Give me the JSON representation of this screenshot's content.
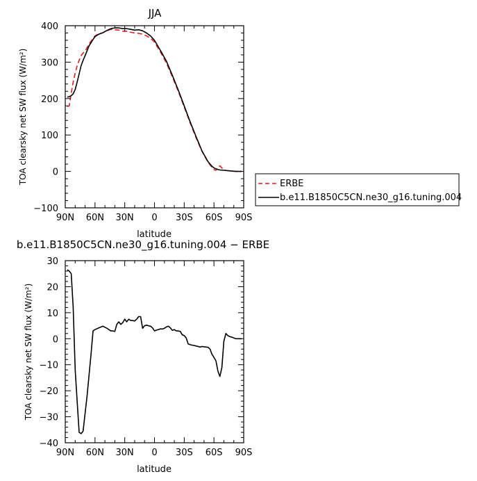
{
  "chart_data": [
    {
      "type": "line",
      "title": "JJA",
      "xlabel": "latitude",
      "ylabel": "TOA clearsky net SW flux (W/m²)",
      "xlim": [
        90,
        -90
      ],
      "ylim": [
        -100,
        400
      ],
      "xticks": [
        90,
        60,
        30,
        0,
        -30,
        -60,
        -90
      ],
      "xtick_labels": [
        "90N",
        "60N",
        "30N",
        "0",
        "30S",
        "60S",
        "90S"
      ],
      "yticks": [
        -100,
        0,
        100,
        200,
        300,
        400
      ],
      "ytick_labels": [
        "−100",
        "0",
        "100",
        "200",
        "300",
        "400"
      ],
      "legend": {
        "placement": "right",
        "entries": [
          {
            "label": "ERBE",
            "color": "#e41a1c",
            "dash": "dashed"
          },
          {
            "label": "b.e11.B1850C5CN.ne30_g16.tuning.004",
            "color": "#000000",
            "dash": "solid"
          }
        ]
      },
      "series": [
        {
          "name": "ERBE",
          "color": "#e41a1c",
          "dash": "dashed",
          "x": [
            88,
            86,
            84,
            82,
            80,
            78,
            76,
            74,
            72,
            70,
            66,
            62,
            60,
            56,
            52,
            48,
            44,
            40,
            36,
            32,
            28,
            24,
            20,
            16,
            12,
            8,
            4,
            0,
            -6,
            -12,
            -18,
            -24,
            -30,
            -36,
            -42,
            -48,
            -54,
            -58,
            -60,
            -62,
            -64,
            -66,
            -70,
            -74,
            -78,
            -82,
            -86,
            -88
          ],
          "y": [
            178,
            180,
            215,
            245,
            270,
            290,
            305,
            318,
            325,
            330,
            350,
            365,
            372,
            378,
            381,
            386,
            390,
            389,
            388,
            385,
            385,
            382,
            380,
            379,
            377,
            372,
            366,
            355,
            328,
            298,
            260,
            220,
            177,
            133,
            92,
            55,
            25,
            11,
            5,
            3,
            12,
            15,
            4,
            2,
            1,
            0,
            0,
            0
          ]
        },
        {
          "name": "b.e11.B1850C5CN.ne30_g16.tuning.004",
          "color": "#000000",
          "dash": "solid",
          "x": [
            88,
            86,
            84,
            82,
            80,
            78,
            76,
            74,
            72,
            70,
            66,
            62,
            60,
            56,
            52,
            48,
            44,
            40,
            36,
            32,
            28,
            24,
            20,
            16,
            12,
            8,
            4,
            0,
            -6,
            -12,
            -18,
            -24,
            -30,
            -36,
            -42,
            -48,
            -54,
            -58,
            -60,
            -62,
            -64,
            -66,
            -70,
            -74,
            -78,
            -82,
            -86,
            -88
          ],
          "y": [
            204,
            205,
            208,
            213,
            225,
            245,
            268,
            290,
            305,
            318,
            345,
            362,
            370,
            377,
            381,
            387,
            392,
            394,
            394,
            392,
            392,
            390,
            388,
            389,
            386,
            380,
            372,
            360,
            332,
            303,
            264,
            223,
            180,
            136,
            95,
            56,
            27,
            14,
            10,
            7,
            5,
            4,
            3,
            2,
            1,
            0,
            0,
            0
          ]
        }
      ]
    },
    {
      "type": "line",
      "title": "b.e11.B1850C5CN.ne30_g16.tuning.004 − ERBE",
      "xlabel": "latitude",
      "ylabel": "TOA clearsky net SW flux (W/m²)",
      "xlim": [
        90,
        -90
      ],
      "ylim": [
        -40,
        30
      ],
      "xticks": [
        90,
        60,
        30,
        0,
        -30,
        -60,
        -90
      ],
      "xtick_labels": [
        "90N",
        "60N",
        "30N",
        "0",
        "30S",
        "60S",
        "90S"
      ],
      "yticks": [
        -40,
        -30,
        -20,
        -10,
        0,
        10,
        20,
        30
      ],
      "ytick_labels": [
        "−40",
        "−30",
        "−20",
        "−10",
        "0",
        "10",
        "20",
        "30"
      ],
      "series": [
        {
          "name": "b.e11.B1850C5CN.ne30_g16.tuning.004 − ERBE",
          "color": "#000000",
          "dash": "solid",
          "x": [
            88,
            86,
            84,
            82,
            80,
            78,
            76,
            74,
            72,
            68,
            64,
            62,
            60,
            56,
            52,
            48,
            44,
            42,
            40,
            38,
            36,
            34,
            32,
            30,
            28,
            26,
            24,
            22,
            20,
            18,
            16,
            14,
            12,
            10,
            8,
            6,
            4,
            2,
            0,
            -2,
            -4,
            -6,
            -8,
            -10,
            -12,
            -14,
            -16,
            -18,
            -20,
            -22,
            -24,
            -26,
            -28,
            -30,
            -32,
            -34,
            -36,
            -38,
            -40,
            -42,
            -44,
            -46,
            -48,
            -50,
            -52,
            -54,
            -56,
            -58,
            -60,
            -62,
            -64,
            -66,
            -68,
            -70,
            -72,
            -74,
            -76,
            -78,
            -80,
            -82,
            -84,
            -86,
            -88
          ],
          "y": [
            26.5,
            26,
            25,
            12,
            -12,
            -24,
            -36,
            -36.5,
            -35.5,
            -22,
            -6,
            3,
            3.5,
            4.2,
            4.8,
            4,
            3,
            3,
            2.8,
            5.5,
            6.5,
            5.5,
            6.2,
            7.5,
            6.5,
            7.5,
            7,
            7,
            6.8,
            7.5,
            8.5,
            8.5,
            4,
            5,
            5.2,
            5,
            4.8,
            4.2,
            3,
            3.3,
            3.5,
            3.8,
            3.7,
            4,
            4.5,
            4.8,
            4.2,
            3.2,
            3.5,
            3,
            3,
            2.8,
            1.5,
            1.2,
            0.3,
            -2,
            -2.3,
            -2.5,
            -2.6,
            -2.8,
            -3,
            -3.2,
            -3,
            -3.1,
            -3.2,
            -3.3,
            -4,
            -6,
            -7.2,
            -8.5,
            -12.5,
            -14.5,
            -11,
            -1,
            2,
            1.2,
            0.8,
            0.6,
            0.3,
            0,
            0,
            0,
            0
          ]
        }
      ]
    }
  ]
}
